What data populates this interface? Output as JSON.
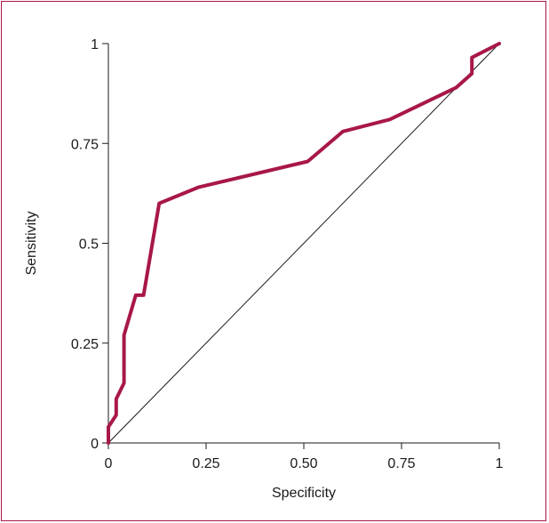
{
  "chart_data": {
    "type": "line",
    "title": "",
    "xlabel": "Specificity",
    "ylabel": "Sensitivity",
    "xlim": [
      0,
      1
    ],
    "ylim": [
      0,
      1
    ],
    "x_ticks": [
      0,
      0.25,
      0.5,
      0.75,
      1
    ],
    "x_tick_labels": [
      "0",
      "0.25",
      "0.50",
      "0.75",
      "1"
    ],
    "y_ticks": [
      0,
      0.25,
      0.5,
      0.75,
      1
    ],
    "y_tick_labels": [
      "0",
      "0.25",
      "0.5",
      "0.75",
      "1"
    ],
    "grid": false,
    "series": [
      {
        "color": "#a8174a",
        "x": [
          0,
          0,
          0.02,
          0.02,
          0.04,
          0.04,
          0.07,
          0.09,
          0.13,
          0.23,
          0.51,
          0.6,
          0.72,
          0.89,
          0.93,
          0.93,
          1
        ],
        "y": [
          0,
          0.04,
          0.07,
          0.11,
          0.15,
          0.27,
          0.37,
          0.37,
          0.6,
          0.64,
          0.705,
          0.78,
          0.81,
          0.89,
          0.925,
          0.965,
          1
        ]
      },
      {
        "color": "#1a1a1a",
        "x": [
          0,
          1
        ],
        "y": [
          0,
          1
        ]
      }
    ]
  }
}
